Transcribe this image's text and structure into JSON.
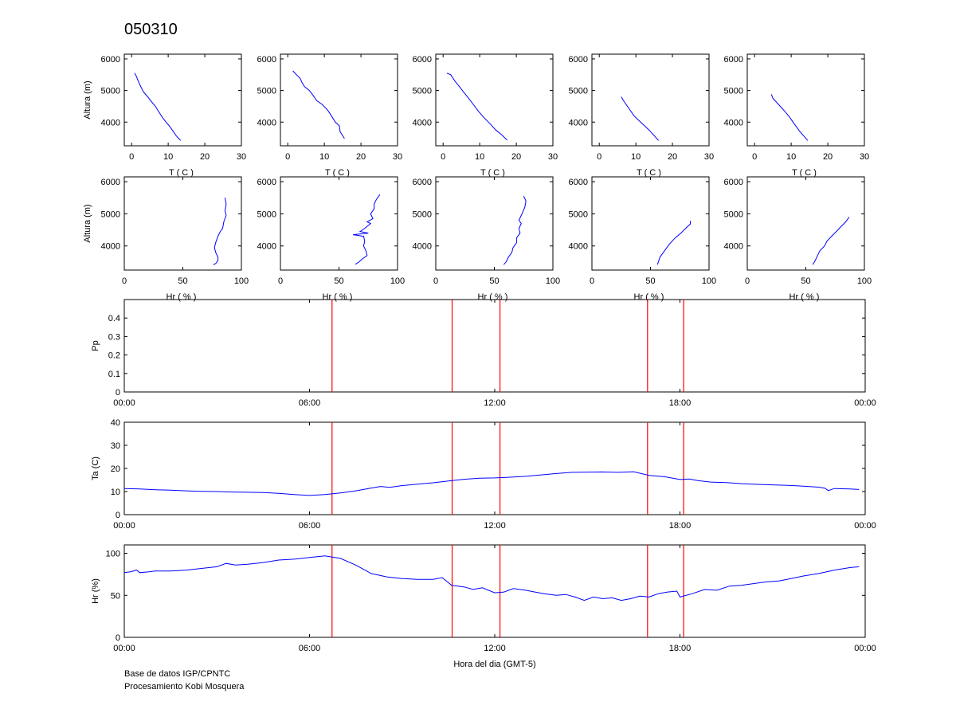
{
  "page": {
    "title": "050310"
  },
  "credits": {
    "line1": "Base de datos IGP/CPNTC",
    "line2": "Procesamiento Kobi Mosquera"
  },
  "colors": {
    "profile_line": "#0000ff",
    "event_line": "#ff0000",
    "axis": "#000000"
  },
  "chart_data": [
    {
      "id": "t1",
      "type": "line",
      "xlabel": "T ( C )",
      "ylabel": "Altura (m)",
      "xlim": [
        -2,
        30
      ],
      "ylim": [
        3250,
        6150
      ],
      "xticks": [
        0,
        10,
        20,
        30
      ],
      "yticks": [
        4000,
        5000,
        6000
      ],
      "points": [
        [
          0.8,
          5550
        ],
        [
          1.3,
          5450
        ],
        [
          1.8,
          5300
        ],
        [
          2.6,
          5100
        ],
        [
          3.3,
          4950
        ],
        [
          4.4,
          4800
        ],
        [
          5.4,
          4650
        ],
        [
          6.5,
          4500
        ],
        [
          7.3,
          4350
        ],
        [
          8.4,
          4150
        ],
        [
          9.4,
          4000
        ],
        [
          10.5,
          3850
        ],
        [
          11.4,
          3700
        ],
        [
          12.3,
          3550
        ],
        [
          13.4,
          3420
        ]
      ]
    },
    {
      "id": "t2",
      "type": "line",
      "xlabel": "T ( C )",
      "ylabel": "",
      "xlim": [
        -2,
        30
      ],
      "ylim": [
        3250,
        6150
      ],
      "xticks": [
        0,
        10,
        20,
        30
      ],
      "yticks": [
        4000,
        5000,
        6000
      ],
      "points": [
        [
          1.4,
          5620
        ],
        [
          2.4,
          5500
        ],
        [
          3.4,
          5380
        ],
        [
          3.9,
          5250
        ],
        [
          4.6,
          5120
        ],
        [
          5.9,
          5000
        ],
        [
          6.9,
          4850
        ],
        [
          7.9,
          4680
        ],
        [
          9.4,
          4560
        ],
        [
          10.9,
          4380
        ],
        [
          11.9,
          4200
        ],
        [
          13.0,
          4000
        ],
        [
          14.1,
          3880
        ],
        [
          14.3,
          3700
        ],
        [
          15.5,
          3480
        ]
      ]
    },
    {
      "id": "t3",
      "type": "line",
      "xlabel": "T ( C )",
      "ylabel": "",
      "xlim": [
        -2,
        30
      ],
      "ylim": [
        3250,
        6150
      ],
      "xticks": [
        0,
        10,
        20,
        30
      ],
      "yticks": [
        4000,
        5000,
        6000
      ],
      "points": [
        [
          1.0,
          5550
        ],
        [
          2.1,
          5500
        ],
        [
          3.2,
          5300
        ],
        [
          4.3,
          5150
        ],
        [
          5.6,
          4950
        ],
        [
          6.8,
          4780
        ],
        [
          8.0,
          4600
        ],
        [
          9.6,
          4350
        ],
        [
          11.1,
          4150
        ],
        [
          12.8,
          3950
        ],
        [
          14.4,
          3750
        ],
        [
          16.0,
          3600
        ],
        [
          17.5,
          3430
        ]
      ]
    },
    {
      "id": "t4",
      "type": "line",
      "xlabel": "T ( C )",
      "ylabel": "",
      "xlim": [
        -2,
        30
      ],
      "ylim": [
        3250,
        6150
      ],
      "xticks": [
        0,
        10,
        20,
        30
      ],
      "yticks": [
        4000,
        5000,
        6000
      ],
      "points": [
        [
          6.0,
          4800
        ],
        [
          6.8,
          4650
        ],
        [
          8.0,
          4450
        ],
        [
          9.5,
          4200
        ],
        [
          11.5,
          3980
        ],
        [
          13.6,
          3750
        ],
        [
          16.2,
          3420
        ]
      ]
    },
    {
      "id": "t5",
      "type": "line",
      "xlabel": "T ( C )",
      "ylabel": "",
      "xlim": [
        -2,
        30
      ],
      "ylim": [
        3250,
        6150
      ],
      "xticks": [
        0,
        10,
        20,
        30
      ],
      "yticks": [
        4000,
        5000,
        6000
      ],
      "points": [
        [
          4.6,
          4880
        ],
        [
          5.0,
          4750
        ],
        [
          6.6,
          4550
        ],
        [
          8.4,
          4320
        ],
        [
          9.6,
          4150
        ],
        [
          10.8,
          3950
        ],
        [
          12.4,
          3700
        ],
        [
          14.5,
          3420
        ]
      ]
    },
    {
      "id": "h1",
      "type": "line",
      "xlabel": "Hr ( % )",
      "ylabel": "Altura (m)",
      "xlim": [
        0,
        100
      ],
      "ylim": [
        3250,
        6150
      ],
      "xticks": [
        0,
        50,
        100
      ],
      "yticks": [
        4000,
        5000,
        6000
      ],
      "points": [
        [
          86,
          5500
        ],
        [
          87,
          5300
        ],
        [
          86,
          5100
        ],
        [
          87,
          4950
        ],
        [
          85,
          4750
        ],
        [
          84,
          4550
        ],
        [
          82,
          4450
        ],
        [
          80,
          4300
        ],
        [
          78,
          4100
        ],
        [
          77,
          3950
        ],
        [
          78,
          3800
        ],
        [
          80,
          3650
        ],
        [
          80,
          3550
        ],
        [
          78,
          3450
        ],
        [
          76,
          3420
        ]
      ]
    },
    {
      "id": "h2",
      "type": "line",
      "xlabel": "Hr ( % )",
      "ylabel": "",
      "xlim": [
        0,
        100
      ],
      "ylim": [
        3250,
        6150
      ],
      "xticks": [
        0,
        50,
        100
      ],
      "yticks": [
        4000,
        5000,
        6000
      ],
      "points": [
        [
          85,
          5600
        ],
        [
          82,
          5450
        ],
        [
          80,
          5300
        ],
        [
          80,
          5150
        ],
        [
          77,
          5000
        ],
        [
          79,
          4850
        ],
        [
          74,
          4750
        ],
        [
          77,
          4700
        ],
        [
          72,
          4550
        ],
        [
          68,
          4450
        ],
        [
          75,
          4400
        ],
        [
          62,
          4350
        ],
        [
          71,
          4300
        ],
        [
          72,
          4150
        ],
        [
          71,
          4000
        ],
        [
          73,
          3850
        ],
        [
          74,
          3700
        ],
        [
          70,
          3600
        ],
        [
          67,
          3500
        ],
        [
          64,
          3430
        ]
      ]
    },
    {
      "id": "h3",
      "type": "line",
      "xlabel": "Hr ( % )",
      "ylabel": "",
      "xlim": [
        0,
        100
      ],
      "ylim": [
        3250,
        6150
      ],
      "xticks": [
        0,
        50,
        100
      ],
      "yticks": [
        4000,
        5000,
        6000
      ],
      "points": [
        [
          75,
          5550
        ],
        [
          77,
          5400
        ],
        [
          76,
          5200
        ],
        [
          73,
          4950
        ],
        [
          71,
          4800
        ],
        [
          73,
          4700
        ],
        [
          71,
          4550
        ],
        [
          72,
          4400
        ],
        [
          69,
          4250
        ],
        [
          69,
          4100
        ],
        [
          66,
          3950
        ],
        [
          65,
          3800
        ],
        [
          62,
          3650
        ],
        [
          60,
          3500
        ],
        [
          58,
          3420
        ]
      ]
    },
    {
      "id": "h4",
      "type": "line",
      "xlabel": "Hr ( % )",
      "ylabel": "",
      "xlim": [
        0,
        100
      ],
      "ylim": [
        3250,
        6150
      ],
      "xticks": [
        0,
        50,
        100
      ],
      "yticks": [
        4000,
        5000,
        6000
      ],
      "points": [
        [
          84,
          4780
        ],
        [
          84,
          4680
        ],
        [
          80,
          4550
        ],
        [
          76,
          4400
        ],
        [
          71,
          4250
        ],
        [
          66,
          4050
        ],
        [
          62,
          3850
        ],
        [
          58,
          3650
        ],
        [
          56,
          3420
        ]
      ]
    },
    {
      "id": "h5",
      "type": "line",
      "xlabel": "Hr ( % )",
      "ylabel": "",
      "xlim": [
        0,
        100
      ],
      "ylim": [
        3250,
        6150
      ],
      "xticks": [
        0,
        50,
        100
      ],
      "yticks": [
        4000,
        5000,
        6000
      ],
      "points": [
        [
          87,
          4900
        ],
        [
          84,
          4750
        ],
        [
          80,
          4600
        ],
        [
          76,
          4450
        ],
        [
          72,
          4300
        ],
        [
          68,
          4150
        ],
        [
          66,
          4000
        ],
        [
          62,
          3850
        ],
        [
          60,
          3700
        ],
        [
          58,
          3550
        ],
        [
          56,
          3420
        ]
      ]
    },
    {
      "id": "pp",
      "type": "line",
      "xlabel": "",
      "ylabel": "Pp",
      "xlim": [
        0,
        24
      ],
      "ylim": [
        0,
        0.5
      ],
      "xticks": [
        "00:00",
        "06:00",
        "12:00",
        "18:00",
        "00:00"
      ],
      "yticks": [
        0,
        0.1,
        0.2,
        0.3,
        0.4
      ],
      "points": []
    },
    {
      "id": "ta",
      "type": "line",
      "xlabel": "",
      "ylabel": "Ta (C)",
      "xlim": [
        0,
        24
      ],
      "ylim": [
        0,
        40
      ],
      "xticks": [
        "00:00",
        "06:00",
        "12:00",
        "18:00",
        "00:00"
      ],
      "yticks": [
        0,
        10,
        20,
        30,
        40
      ],
      "points": [
        [
          0,
          11.3
        ],
        [
          0.5,
          11.1
        ],
        [
          1,
          10.8
        ],
        [
          1.5,
          10.6
        ],
        [
          2,
          10.3
        ],
        [
          2.5,
          10.1
        ],
        [
          3,
          10.0
        ],
        [
          3.5,
          9.8
        ],
        [
          4,
          9.7
        ],
        [
          4.5,
          9.6
        ],
        [
          5,
          9.2
        ],
        [
          5.5,
          8.7
        ],
        [
          6,
          8.3
        ],
        [
          6.5,
          8.7
        ],
        [
          7,
          9.4
        ],
        [
          7.5,
          10.3
        ],
        [
          8,
          11.5
        ],
        [
          8.3,
          12.2
        ],
        [
          8.6,
          11.8
        ],
        [
          9,
          12.6
        ],
        [
          9.5,
          13.2
        ],
        [
          10,
          13.8
        ],
        [
          10.5,
          14.6
        ],
        [
          11,
          15.3
        ],
        [
          11.5,
          15.8
        ],
        [
          12,
          15.9
        ],
        [
          12.5,
          16.2
        ],
        [
          13,
          16.6
        ],
        [
          13.5,
          17.2
        ],
        [
          14,
          17.8
        ],
        [
          14.5,
          18.3
        ],
        [
          15,
          18.4
        ],
        [
          15.5,
          18.5
        ],
        [
          16,
          18.3
        ],
        [
          16.5,
          18.6
        ],
        [
          17,
          17.0
        ],
        [
          17.5,
          16.4
        ],
        [
          18,
          15.2
        ],
        [
          18.3,
          15.4
        ],
        [
          18.6,
          14.7
        ],
        [
          19,
          14.1
        ],
        [
          19.5,
          13.9
        ],
        [
          20,
          13.4
        ],
        [
          20.5,
          13.1
        ],
        [
          21,
          12.9
        ],
        [
          21.5,
          12.7
        ],
        [
          22,
          12.3
        ],
        [
          22.5,
          11.9
        ],
        [
          22.7,
          11.4
        ],
        [
          22.8,
          10.4
        ],
        [
          23,
          11.3
        ],
        [
          23.5,
          11.1
        ],
        [
          23.8,
          10.9
        ]
      ]
    },
    {
      "id": "hr",
      "type": "line",
      "xlabel": "Hora del dia (GMT-5)",
      "ylabel": "Hr (%)",
      "xlim": [
        0,
        24
      ],
      "ylim": [
        0,
        110
      ],
      "xticks": [
        "00:00",
        "06:00",
        "12:00",
        "18:00",
        "00:00"
      ],
      "yticks": [
        0,
        50,
        100
      ],
      "points": [
        [
          0,
          77
        ],
        [
          0.2,
          78
        ],
        [
          0.4,
          80
        ],
        [
          0.5,
          77
        ],
        [
          0.8,
          78
        ],
        [
          1,
          79
        ],
        [
          1.5,
          79
        ],
        [
          2,
          80
        ],
        [
          2.5,
          82
        ],
        [
          3,
          84
        ],
        [
          3.3,
          88
        ],
        [
          3.6,
          86
        ],
        [
          4,
          87
        ],
        [
          4.5,
          89
        ],
        [
          5,
          92
        ],
        [
          5.5,
          93
        ],
        [
          6,
          95
        ],
        [
          6.5,
          97
        ],
        [
          7,
          94
        ],
        [
          7.5,
          86
        ],
        [
          8,
          76
        ],
        [
          8.5,
          72
        ],
        [
          9,
          70
        ],
        [
          9.5,
          69
        ],
        [
          10,
          69
        ],
        [
          10.3,
          71
        ],
        [
          10.6,
          62
        ],
        [
          11,
          60
        ],
        [
          11.3,
          57
        ],
        [
          11.6,
          59
        ],
        [
          12,
          53
        ],
        [
          12.3,
          54
        ],
        [
          12.6,
          58
        ],
        [
          13,
          56
        ],
        [
          13.3,
          54
        ],
        [
          13.6,
          52
        ],
        [
          14,
          50
        ],
        [
          14.3,
          51
        ],
        [
          14.6,
          48
        ],
        [
          14.9,
          44
        ],
        [
          15.2,
          48
        ],
        [
          15.5,
          46
        ],
        [
          15.8,
          47
        ],
        [
          16.1,
          44
        ],
        [
          16.4,
          46
        ],
        [
          16.7,
          49
        ],
        [
          17,
          48
        ],
        [
          17.3,
          52
        ],
        [
          17.6,
          54
        ],
        [
          17.9,
          55
        ],
        [
          18,
          48
        ],
        [
          18.4,
          52
        ],
        [
          18.8,
          57
        ],
        [
          19.2,
          56
        ],
        [
          19.6,
          61
        ],
        [
          20,
          62
        ],
        [
          20.4,
          64
        ],
        [
          20.8,
          66
        ],
        [
          21.2,
          67
        ],
        [
          21.6,
          70
        ],
        [
          22,
          73
        ],
        [
          22.5,
          76
        ],
        [
          23,
          80
        ],
        [
          23.5,
          83
        ],
        [
          23.8,
          84
        ]
      ]
    }
  ],
  "events": {
    "hours": [
      6.73,
      10.62,
      12.17,
      16.95,
      18.12
    ]
  }
}
